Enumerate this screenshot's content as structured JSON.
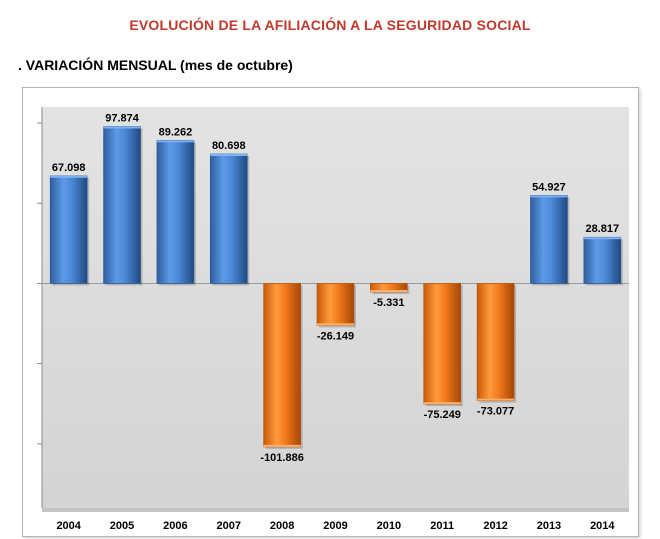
{
  "header": {
    "title": "EVOLUCIÓN DE LA AFILIACIÓN A LA SEGURIDAD SOCIAL",
    "subtitle": ". VARIACIÓN MENSUAL (mes de octubre)"
  },
  "colors": {
    "title": "#c0392b",
    "positive": "#4a86d4",
    "negative": "#f07818",
    "plot_bg": "#e6e6e6"
  },
  "chart_data": {
    "type": "bar",
    "categories": [
      "2004",
      "2005",
      "2006",
      "2007",
      "2008",
      "2009",
      "2010",
      "2011",
      "2012",
      "2013",
      "2014"
    ],
    "values": [
      67098,
      97874,
      89262,
      80698,
      -101886,
      -26149,
      -5331,
      -75249,
      -73077,
      54927,
      28817
    ],
    "data_labels": [
      "67.098",
      "97.874",
      "89.262",
      "80.698",
      "-101.886",
      "-26.149",
      "-5.331",
      "-75.249",
      "-73.077",
      "54.927",
      "28.817"
    ],
    "ylim": [
      -140000,
      110000
    ],
    "y_tick_values": [
      100000,
      50000,
      0,
      -50000,
      -100000
    ],
    "y_tick_labels_shown": false,
    "grid": false,
    "legend": "none"
  }
}
